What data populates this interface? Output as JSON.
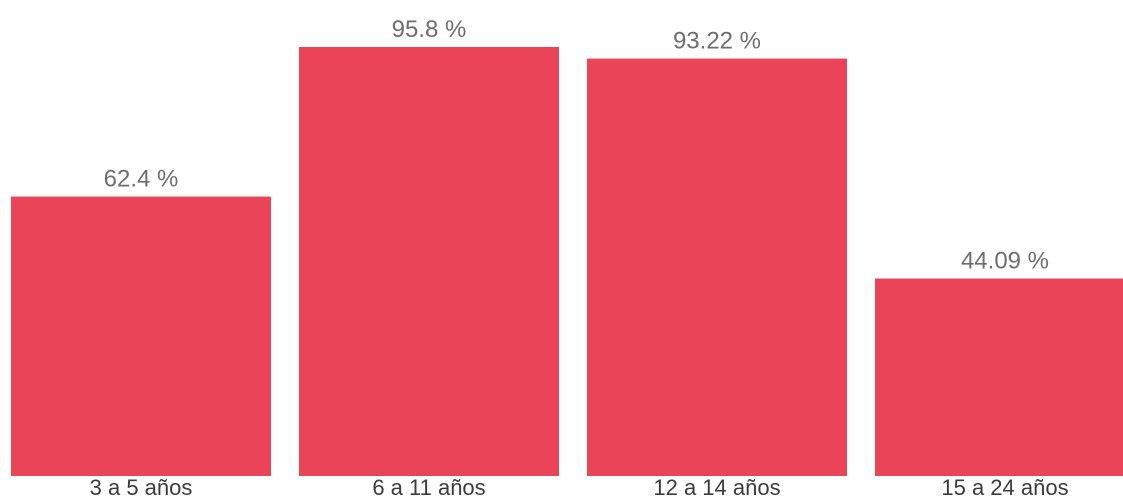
{
  "colors": {
    "bar": "#e94458",
    "value_label": "#6e6e6e",
    "category_label": "#3c3c3c"
  },
  "chart_data": {
    "type": "bar",
    "title": "",
    "xlabel": "",
    "ylabel": "",
    "ylim": [
      0,
      100
    ],
    "grid": false,
    "legend": "none",
    "categories": [
      "3 a 5 años",
      "6 a 11 años",
      "12 a 14 años",
      "15 a 24 años"
    ],
    "values": [
      62.4,
      95.8,
      93.22,
      44.09
    ],
    "value_labels": [
      "62.4 %",
      "95.8 %",
      "93.22 %",
      "44.09 %"
    ]
  }
}
